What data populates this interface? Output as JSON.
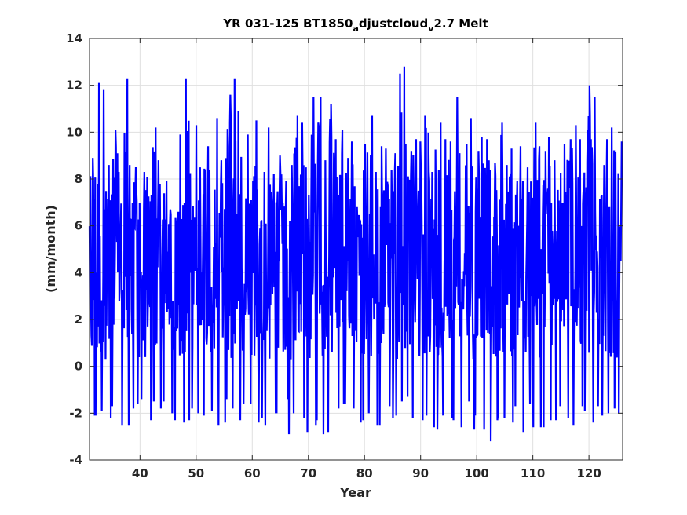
{
  "chart_data": {
    "type": "line",
    "title": {
      "part1": "YR 031-125 BT1850",
      "sub1": "a",
      "part2": "djustcloud",
      "sub2": "v",
      "part3": "2.7 Melt"
    },
    "xlabel": "Year",
    "ylabel": "(mm/month)",
    "xlim": [
      31,
      126
    ],
    "ylim": [
      -4,
      14
    ],
    "xticks": [
      40,
      50,
      60,
      70,
      80,
      90,
      100,
      110,
      120
    ],
    "yticks": [
      -4,
      -2,
      0,
      2,
      4,
      6,
      8,
      10,
      12,
      14
    ],
    "grid": true,
    "series": [
      {
        "color": "#0000ff",
        "months_per_year": 12,
        "x_start": 31,
        "x_end": 126,
        "annual_max": [
          8.9,
          12.1,
          11.8,
          8.6,
          10.1,
          8.3,
          12.3,
          8.6,
          8.5,
          8.3,
          8.1,
          10.2,
          8.8,
          7.9,
          6.7,
          6.6,
          9.9,
          12.3,
          10.3,
          8.5,
          9.4,
          8.4,
          10.6,
          8.8,
          11.6,
          12.3,
          10.9,
          9.9,
          7.9,
          10.5,
          8.3,
          10.2,
          8.2,
          9.0,
          7.9,
          8.6,
          10.7,
          10.4,
          8.5,
          11.5,
          11.5,
          8.8,
          11.2,
          9.7,
          10.1,
          8.9,
          9.6,
          6.8,
          9.5,
          10.7,
          8.3,
          9.4,
          9.3,
          9.1,
          12.5,
          12.8,
          9.2,
          9.7,
          9.6,
          10.7,
          8.3,
          10.4,
          9.7,
          9.6,
          11.5,
          9.1,
          9.5,
          10.6,
          9.2,
          9.8,
          9.7,
          8.7,
          10.4,
          8.6,
          9.3,
          7.9,
          9.4,
          8.5,
          10.4,
          9.4,
          9.2,
          9.8,
          8.8,
          9.5,
          9.7,
          10.3,
          9.7,
          10.1,
          12.0,
          11.5,
          8.6,
          9.7,
          10.2,
          9.6
        ],
        "annual_min": [
          -2.1,
          -2.1,
          -1.9,
          -2.2,
          -1.7,
          -2.5,
          -2.5,
          -1.8,
          -1.6,
          -1.4,
          -2.3,
          -1.5,
          -1.8,
          -1.5,
          -2.0,
          -2.3,
          -2.4,
          -2.3,
          -1.8,
          -2.0,
          -2.1,
          -1.9,
          -2.5,
          -2.4,
          -1.4,
          -1.8,
          -2.3,
          -1.6,
          -1.6,
          -2.4,
          -2.2,
          -2.5,
          -2.0,
          -2.0,
          -1.4,
          -2.9,
          -2.0,
          -2.2,
          -2.8,
          -2.5,
          -2.3,
          -2.9,
          -2.8,
          -1.8,
          -1.6,
          -1.6,
          -1.8,
          -2.4,
          -2.3,
          -2.0,
          -2.5,
          -2.5,
          -1.7,
          -2.2,
          -2.1,
          -1.5,
          -1.3,
          -2.2,
          -2.3,
          -2.1,
          -2.6,
          -2.7,
          -2.1,
          -2.2,
          -2.3,
          -2.6,
          -1.5,
          -2.7,
          -2.1,
          -2.7,
          -3.2,
          -2.3,
          -2.1,
          -2.2,
          -2.4,
          -1.7,
          -2.8,
          -1.6,
          -2.6,
          -2.6,
          -2.6,
          -2.3,
          -2.3,
          -1.7,
          -2.2,
          -2.5,
          -1.7,
          -1.9,
          -2.4,
          -1.7,
          -2.1,
          -2.0,
          -1.8,
          -2.0
        ]
      }
    ]
  }
}
